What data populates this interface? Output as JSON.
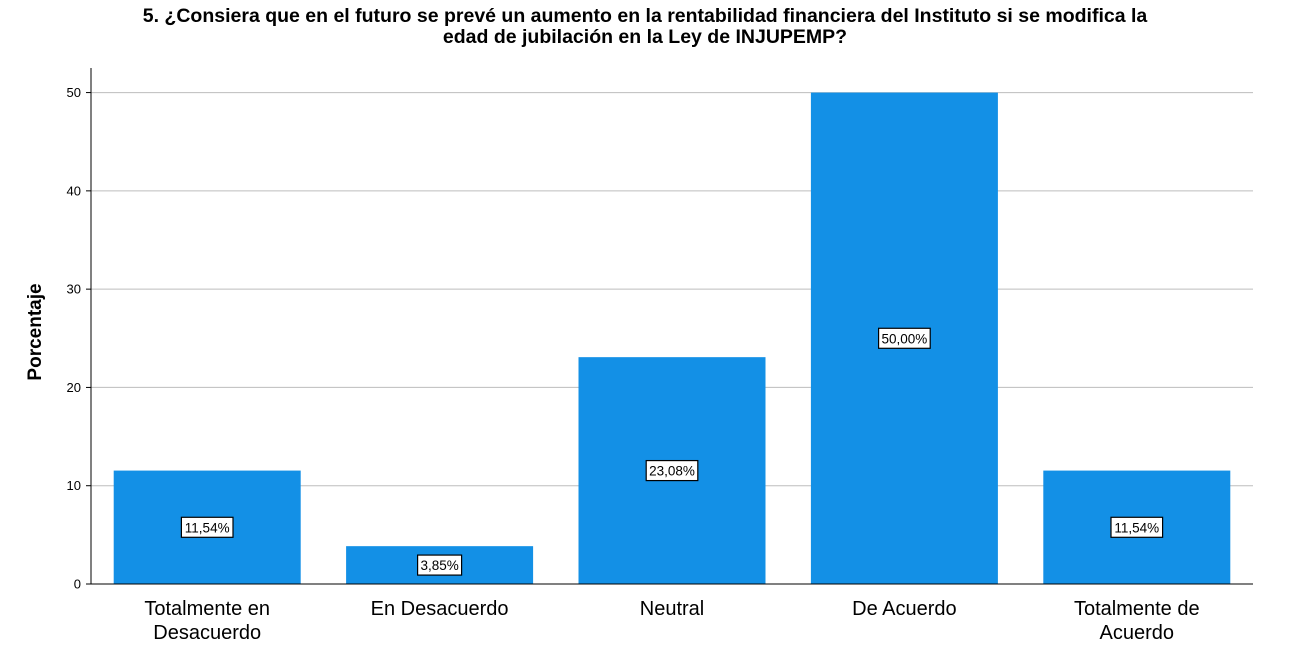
{
  "chart_data": {
    "type": "bar",
    "title_lines": [
      "5. ¿Consiera  que en el futuro se prevé un aumento en la rentabilidad financiera del Instituto si se modifica la",
      "edad de jubilación en la Ley de INJUPEMP?"
    ],
    "ylabel": "Porcentaje",
    "xlabel": "",
    "categories": [
      [
        "Totalmente en",
        "Desacuerdo"
      ],
      [
        "En Desacuerdo"
      ],
      [
        "Neutral"
      ],
      [
        "De Acuerdo"
      ],
      [
        "Totalmente de",
        "Acuerdo"
      ]
    ],
    "values": [
      11.54,
      3.85,
      23.08,
      50.0,
      11.54
    ],
    "data_labels": [
      "11,54%",
      "3,85%",
      "23,08%",
      "50,00%",
      "11,54%"
    ],
    "ylim": [
      0,
      52.5
    ],
    "yticks": [
      0,
      10,
      20,
      30,
      40,
      50
    ],
    "grid": true,
    "bar_color": "#1390E6",
    "grid_color": "#BDBDBD"
  }
}
